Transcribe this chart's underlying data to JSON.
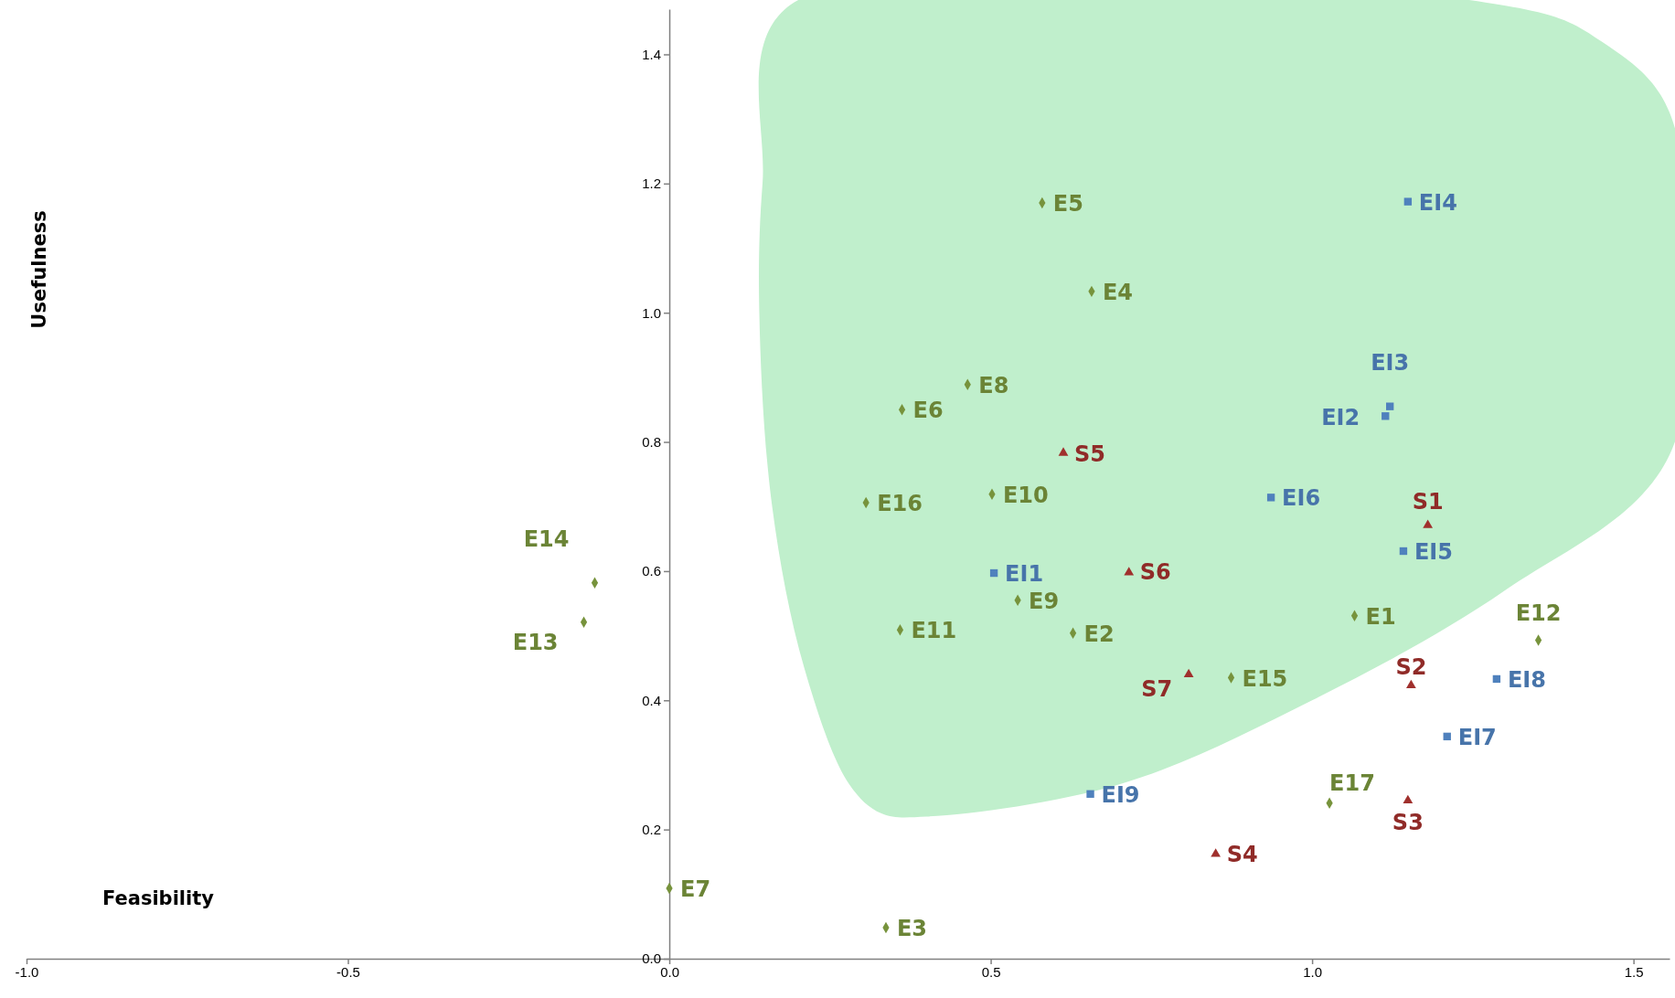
{
  "chart_data": {
    "type": "scatter",
    "xlabel": "Feasibility",
    "ylabel": "Usefulness",
    "xlim": [
      -1.0,
      1.556
    ],
    "ylim": [
      0,
      1.47
    ],
    "xticks": [
      {
        "value": -1,
        "label": "-1.0"
      },
      {
        "value": -0.5,
        "label": "-0.5"
      },
      {
        "value": 0,
        "label": "0.0"
      },
      {
        "value": 0.5,
        "label": "0.5"
      },
      {
        "value": 1,
        "label": "1.0"
      },
      {
        "value": 1.5,
        "label": "1.5"
      }
    ],
    "yticks": [
      {
        "value": 0,
        "label": "0.0"
      },
      {
        "value": 0.2,
        "label": "0.2"
      },
      {
        "value": 0.4,
        "label": "0.4"
      },
      {
        "value": 0.6,
        "label": "0.6"
      },
      {
        "value": 0.8,
        "label": "0.8"
      },
      {
        "value": 1,
        "label": "1.0"
      },
      {
        "value": 1.2,
        "label": "1.2"
      },
      {
        "value": 1.4,
        "label": "1.4"
      }
    ],
    "grid": false,
    "series": [
      {
        "color": "#77933c",
        "marker": "diamond",
        "x": [
          1.066,
          0.628,
          0.337,
          0.657,
          0.58,
          0.362,
          0.0,
          0.464,
          0.542,
          0.502,
          0.359,
          1.352,
          -0.133,
          -0.116,
          0.874,
          0.306,
          1.027
        ],
        "values": [
          0.531,
          0.504,
          0.048,
          1.033,
          1.17,
          0.85,
          0.109,
          0.889,
          0.555,
          0.719,
          0.509,
          0.493,
          0.521,
          0.582,
          0.435,
          0.706,
          0.241
        ]
      },
      {
        "color": "#4f81bd",
        "marker": "square",
        "x": [
          0.505,
          1.114,
          1.121,
          1.149,
          1.142,
          0.936,
          1.21,
          1.287,
          0.655
        ],
        "values": [
          0.597,
          0.84,
          0.855,
          1.172,
          0.631,
          0.714,
          0.344,
          0.433,
          0.255
        ]
      },
      {
        "color": "#a0302d",
        "marker": "triangle",
        "x": [
          1.18,
          1.154,
          1.149,
          0.85,
          0.613,
          0.715,
          0.808
        ],
        "values": [
          0.671,
          0.423,
          0.245,
          0.162,
          0.783,
          0.598,
          0.44
        ]
      }
    ],
    "annotations": [
      {
        "text": "E1",
        "x": 1.066,
        "y": 0.531
      },
      {
        "text": "E2",
        "x": 0.628,
        "y": 0.504
      },
      {
        "text": "E3",
        "x": 0.337,
        "y": 0.048
      },
      {
        "text": "E4",
        "x": 0.657,
        "y": 1.033
      },
      {
        "text": "E5",
        "x": 0.58,
        "y": 1.17
      },
      {
        "text": "E6",
        "x": 0.362,
        "y": 0.85
      },
      {
        "text": "E7",
        "x": 0.0,
        "y": 0.109
      },
      {
        "text": "E8",
        "x": 0.464,
        "y": 0.889
      },
      {
        "text": "E9",
        "x": 0.542,
        "y": 0.555
      },
      {
        "text": "E10",
        "x": 0.502,
        "y": 0.719
      },
      {
        "text": "E11",
        "x": 0.359,
        "y": 0.509
      },
      {
        "text": "E12",
        "x": 1.352,
        "y": 0.493
      },
      {
        "text": "E13",
        "x": -0.133,
        "y": 0.521
      },
      {
        "text": "E14",
        "x": -0.116,
        "y": 0.582
      },
      {
        "text": "E15",
        "x": 0.874,
        "y": 0.435
      },
      {
        "text": "E16",
        "x": 0.306,
        "y": 0.706
      },
      {
        "text": "E17",
        "x": 1.027,
        "y": 0.241
      },
      {
        "text": "EI1",
        "x": 0.505,
        "y": 0.597
      },
      {
        "text": "EI2",
        "x": 1.114,
        "y": 0.84
      },
      {
        "text": "EI3",
        "x": 1.121,
        "y": 0.855
      },
      {
        "text": "EI4",
        "x": 1.149,
        "y": 1.172
      },
      {
        "text": "EI5",
        "x": 1.142,
        "y": 0.631
      },
      {
        "text": "EI6",
        "x": 0.936,
        "y": 0.714
      },
      {
        "text": "EI7",
        "x": 1.21,
        "y": 0.344
      },
      {
        "text": "EI8",
        "x": 1.287,
        "y": 0.433
      },
      {
        "text": "EI9",
        "x": 0.655,
        "y": 0.255
      },
      {
        "text": "S1",
        "x": 1.18,
        "y": 0.671
      },
      {
        "text": "S2",
        "x": 1.154,
        "y": 0.423
      },
      {
        "text": "S3",
        "x": 1.149,
        "y": 0.245
      },
      {
        "text": "S4",
        "x": 0.85,
        "y": 0.162
      },
      {
        "text": "S5",
        "x": 0.613,
        "y": 0.783
      },
      {
        "text": "S6",
        "x": 0.715,
        "y": 0.598
      },
      {
        "text": "S7",
        "x": 0.808,
        "y": 0.44
      }
    ]
  }
}
